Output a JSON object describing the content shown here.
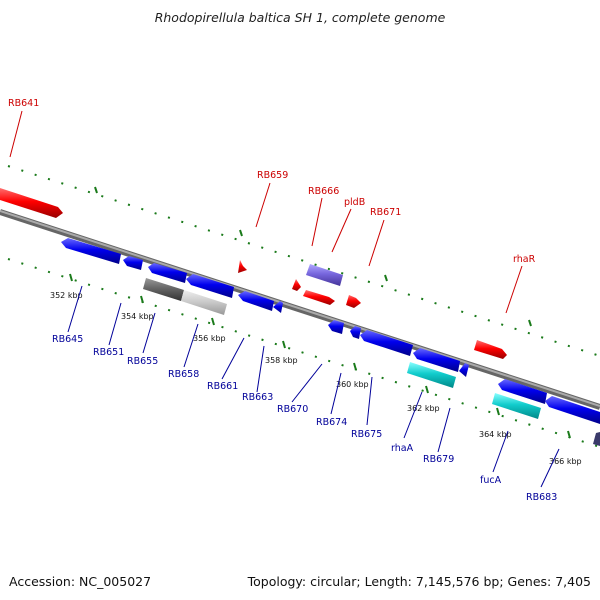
{
  "title": "Rhodopirellula baltica SH 1, complete genome",
  "footer": {
    "accession": "Accession: NC_005027",
    "summary": "Topology: circular; Length: 7,145,576 bp; Genes: 7,405"
  },
  "colors": {
    "red_label": "#cc0000",
    "blue_label": "#000099",
    "backbone": "#888888",
    "tick": "#1a7a1a"
  },
  "scale_labels": [
    "352 kbp",
    "354 kbp",
    "356 kbp",
    "358 kbp",
    "360 kbp",
    "362 kbp",
    "364 kbp",
    "366 kbp"
  ],
  "genes_top": [
    "RB641",
    "RB659",
    "RB666",
    "pldB",
    "RB671",
    "rhaR"
  ],
  "genes_bottom": [
    "RB645",
    "RB651",
    "RB655",
    "RB658",
    "RB661",
    "RB663",
    "RB670",
    "RB674",
    "RB675",
    "rhaA",
    "RB679",
    "fucA",
    "RB683"
  ]
}
